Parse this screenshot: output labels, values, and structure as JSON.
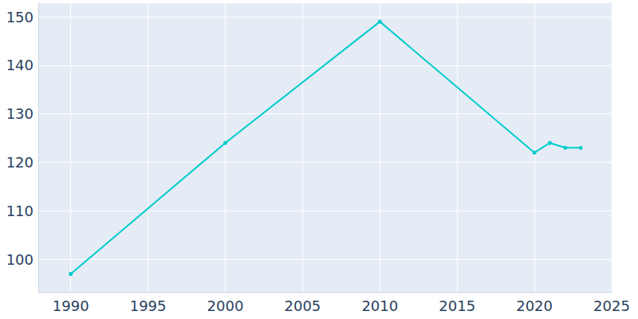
{
  "chart_data": {
    "type": "line",
    "x": [
      1990,
      2000,
      2010,
      2020,
      2021,
      2022,
      2023
    ],
    "values": [
      97,
      124,
      149,
      122,
      124,
      123,
      123
    ],
    "color": "#00cccc",
    "marker": "circle",
    "xlim": [
      1987.9,
      2025
    ],
    "xticks": [
      1990,
      1995,
      2000,
      2005,
      2010,
      2015,
      2020,
      2025
    ],
    "ylim": [
      93.3,
      152.8
    ],
    "yticks": [
      100,
      110,
      120,
      130,
      140,
      150
    ],
    "grid": true
  }
}
